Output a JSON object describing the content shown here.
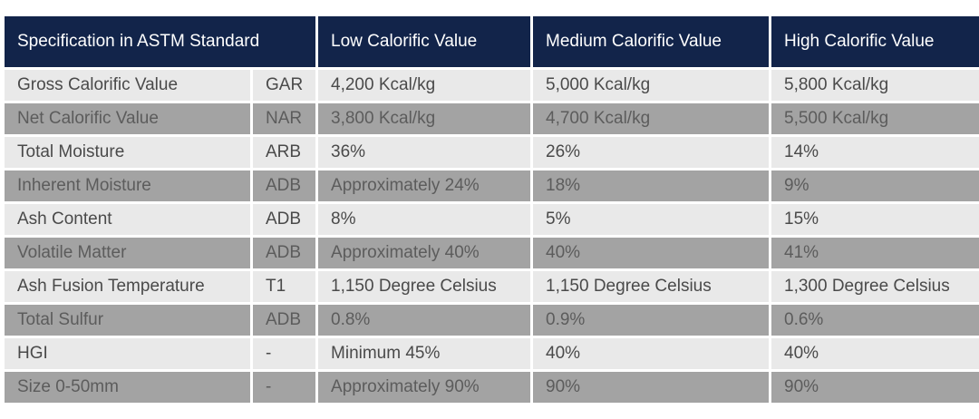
{
  "table": {
    "headers": {
      "spec": "Specification in ASTM Standard",
      "low": "Low Calorific Value",
      "medium": "Medium Calorific Value",
      "high": "High Calorific Value"
    },
    "rows": [
      {
        "spec": "Gross Calorific Value",
        "basis": "GAR",
        "low": "4,200 Kcal/kg",
        "medium": "5,000 Kcal/kg",
        "high": "5,800 Kcal/kg"
      },
      {
        "spec": "Net Calorific Value",
        "basis": "NAR",
        "low": "3,800 Kcal/kg",
        "medium": "4,700 Kcal/kg",
        "high": "5,500 Kcal/kg"
      },
      {
        "spec": "Total Moisture",
        "basis": "ARB",
        "low": "36%",
        "medium": "26%",
        "high": "14%"
      },
      {
        "spec": "Inherent Moisture",
        "basis": "ADB",
        "low": "Approximately 24%",
        "medium": "18%",
        "high": "9%"
      },
      {
        "spec": "Ash Content",
        "basis": "ADB",
        "low": "8%",
        "medium": "5%",
        "high": "15%"
      },
      {
        "spec": "Volatile Matter",
        "basis": "ADB",
        "low": "Approximately 40%",
        "medium": "40%",
        "high": "41%"
      },
      {
        "spec": "Ash Fusion Temperature",
        "basis": "T1",
        "low": "1,150 Degree Celsius",
        "medium": "1,150 Degree Celsius",
        "high": "1,300 Degree Celsius"
      },
      {
        "spec": "Total Sulfur",
        "basis": "ADB",
        "low": "0.8%",
        "medium": "0.9%",
        "high": "0.6%"
      },
      {
        "spec": "HGI",
        "basis": "-",
        "low": "Minimum 45%",
        "medium": "40%",
        "high": "40%"
      },
      {
        "spec": "Size 0-50mm",
        "basis": "-",
        "low": "Approximately 90%",
        "medium": "90%",
        "high": "90%"
      }
    ]
  },
  "colors": {
    "header_bg": "#12244a",
    "row_light": "#e9e9e9",
    "row_dark": "#a3a3a3"
  }
}
